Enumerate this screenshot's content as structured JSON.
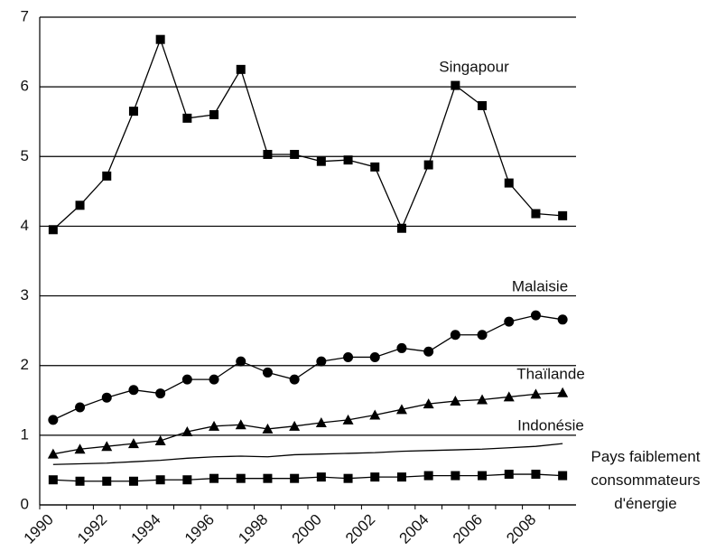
{
  "chart_data": {
    "type": "line",
    "categories": [
      "1990",
      null,
      "1992",
      null,
      "1994",
      null,
      "1996",
      null,
      "1998",
      null,
      "2000",
      null,
      "2002",
      null,
      "2004",
      null,
      "2006",
      null,
      "2008",
      null
    ],
    "ylim": [
      0,
      7
    ],
    "yticks": [
      0,
      1,
      2,
      3,
      4,
      5,
      6,
      7
    ],
    "grid": true,
    "series": [
      {
        "name": "Singapour",
        "color": "#000000",
        "marker": "square",
        "values": [
          3.95,
          4.3,
          4.72,
          5.65,
          6.68,
          5.55,
          5.6,
          6.25,
          5.03,
          5.03,
          4.93,
          4.95,
          4.85,
          3.97,
          4.88,
          6.02,
          5.73,
          4.62,
          4.18,
          4.15
        ]
      },
      {
        "name": "Malaisie",
        "color": "#000000",
        "marker": "circle",
        "values": [
          1.22,
          1.4,
          1.54,
          1.65,
          1.6,
          1.8,
          1.8,
          2.06,
          1.9,
          1.8,
          2.06,
          2.12,
          2.12,
          2.25,
          2.2,
          2.44,
          2.44,
          2.63,
          2.72,
          2.66
        ]
      },
      {
        "name": "Thaïlande",
        "color": "#000000",
        "marker": "triangle",
        "values": [
          0.73,
          0.8,
          0.84,
          0.88,
          0.92,
          1.05,
          1.13,
          1.15,
          1.09,
          1.13,
          1.18,
          1.22,
          1.29,
          1.37,
          1.45,
          1.49,
          1.51,
          1.55,
          1.59,
          1.61
        ]
      },
      {
        "name": "Indonésie",
        "color": "#000000",
        "marker": "none",
        "values": [
          0.58,
          0.59,
          0.6,
          0.62,
          0.64,
          0.67,
          0.69,
          0.7,
          0.69,
          0.72,
          0.73,
          0.74,
          0.75,
          0.77,
          0.78,
          0.79,
          0.8,
          0.82,
          0.84,
          0.88
        ]
      },
      {
        "name": "Pays faiblement consommateurs d'énergie",
        "color": "#000000",
        "marker": "square",
        "values": [
          0.36,
          0.34,
          0.34,
          0.34,
          0.36,
          0.36,
          0.38,
          0.38,
          0.38,
          0.38,
          0.4,
          0.38,
          0.4,
          0.4,
          0.42,
          0.42,
          0.42,
          0.44,
          0.44,
          0.42
        ]
      }
    ]
  }
}
